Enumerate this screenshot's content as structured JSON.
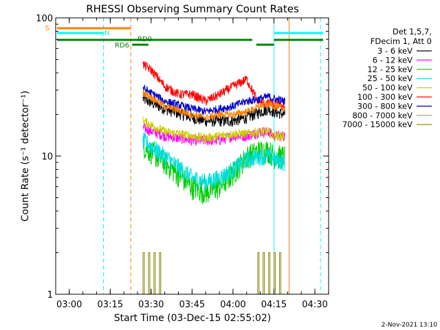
{
  "chart_data": {
    "type": "line",
    "title": "RHESSI Observing Summary Count Rates",
    "xlabel": "Start Time (03-Dec-15 02:55:02)",
    "ylabel": "Count Rate (s⁻¹ detector⁻¹)",
    "yscale": "log",
    "ylim": [
      1,
      100
    ],
    "xlim_minutes": [
      0,
      100
    ],
    "x_ticks": [
      "03:00",
      "03:15",
      "03:30",
      "03:45",
      "04:00",
      "04:15",
      "04:30"
    ],
    "x_tick_minutes": [
      4.97,
      19.97,
      34.97,
      49.97,
      64.97,
      79.97,
      94.97
    ],
    "y_ticks": [
      "1",
      "10",
      "100"
    ],
    "y_tick_values": [
      1,
      10,
      100
    ],
    "legend_header": [
      "Det 1,5,7,",
      "FDecim 1, Att 0"
    ],
    "legend_position": "right",
    "data_gap_minutes": [
      27.5,
      85.5
    ],
    "series": [
      {
        "name": "3 - 6 keV",
        "color": "#000000",
        "x": [
          32,
          40,
          50,
          55,
          60,
          65,
          70,
          75,
          78,
          80,
          84
        ],
        "y": [
          26,
          22,
          19,
          18,
          18,
          18,
          19,
          21,
          22,
          21,
          20
        ],
        "noise": 0.1
      },
      {
        "name": "6 - 12 keV",
        "color": "#ff00ff",
        "x": [
          32,
          40,
          50,
          55,
          60,
          65,
          70,
          75,
          78,
          80,
          84
        ],
        "y": [
          16,
          14,
          13,
          13,
          13,
          14,
          14,
          15,
          15,
          14,
          14
        ],
        "noise": 0.09
      },
      {
        "name": "12 - 25 keV",
        "color": "#00cc00",
        "x": [
          32,
          40,
          50,
          55,
          60,
          65,
          70,
          75,
          78,
          80,
          84
        ],
        "y": [
          12,
          9,
          6,
          5.5,
          6,
          7.5,
          10,
          11,
          11,
          10,
          10
        ],
        "noise": 0.2
      },
      {
        "name": "25 - 50 keV",
        "color": "#00dddd",
        "x": [
          32,
          40,
          50,
          55,
          60,
          65,
          70,
          75,
          78,
          80,
          84
        ],
        "y": [
          13,
          10,
          7,
          6.5,
          7,
          8,
          9.5,
          10,
          10,
          9.5,
          9
        ],
        "noise": 0.15
      },
      {
        "name": "50 - 100 keV",
        "color": "#cccc00",
        "x": [
          32,
          40,
          50,
          55,
          60,
          65,
          70,
          75,
          78,
          80,
          84
        ],
        "y": [
          18,
          15,
          14,
          13.5,
          14,
          14.5,
          14.5,
          15,
          15,
          14,
          14
        ],
        "noise": 0.08
      },
      {
        "name": "100 - 300 keV",
        "color": "#ff0000",
        "x": [
          32,
          35,
          40,
          45,
          50,
          55,
          60,
          65,
          70,
          72,
          74,
          76,
          80,
          84
        ],
        "y": [
          46,
          42,
          32,
          28,
          28,
          25,
          28,
          32,
          36,
          30,
          25,
          24,
          24,
          23
        ],
        "noise": 0.08
      },
      {
        "name": "300 - 800 keV",
        "color": "#0000cc",
        "x": [
          32,
          40,
          50,
          55,
          60,
          65,
          70,
          75,
          78,
          80,
          84
        ],
        "y": [
          31,
          25,
          22,
          21,
          22,
          23,
          25,
          26,
          27,
          26,
          25
        ],
        "noise": 0.07
      },
      {
        "name": "800 - 7000 keV",
        "color": "#ff8000",
        "x": [
          32,
          40,
          50,
          55,
          60,
          65,
          70,
          75,
          78,
          80,
          84
        ],
        "y": [
          29,
          23,
          20,
          19,
          20,
          20,
          21,
          23,
          24,
          23,
          22
        ],
        "noise": 0.06
      },
      {
        "name": "7000 - 15000 keV",
        "color": "#808000",
        "x": [
          32,
          33,
          34,
          35,
          36,
          37,
          38,
          39,
          74,
          75,
          76,
          77,
          78,
          79,
          80,
          81,
          82,
          83
        ],
        "y": [
          2,
          1,
          2,
          1,
          2,
          1,
          2,
          1,
          2,
          1,
          2,
          1,
          2,
          1,
          2,
          1,
          2,
          1
        ],
        "noise": 0
      }
    ],
    "flag_bars": [
      {
        "label": "S",
        "color": "#ff8000",
        "segments": [
          [
            0,
            27.5
          ]
        ]
      },
      {
        "label": "N",
        "color": "#00ffff",
        "segments": [
          [
            0,
            17.5
          ],
          [
            80,
            98
          ]
        ]
      },
      {
        "label": "RD0",
        "color": "#008000",
        "segments": [
          [
            0,
            72
          ],
          [
            80,
            98
          ]
        ]
      },
      {
        "label": "RD6",
        "color": "#008000",
        "segments": [
          [
            28,
            34
          ],
          [
            73.5,
            80
          ]
        ]
      }
    ],
    "vlines": [
      {
        "x": 17.5,
        "color": "#00ffff",
        "dashed": true
      },
      {
        "x": 27.5,
        "color": "#ff8000",
        "dashed": true
      },
      {
        "x": 80,
        "color": "#00ffff",
        "dashed": false
      },
      {
        "x": 85.5,
        "color": "#ff8000",
        "dashed": false
      },
      {
        "x": 97,
        "color": "#00ffff",
        "dashed": true
      }
    ],
    "grid": false
  },
  "footer": {
    "date_stamp": "2-Nov-2021 13:10"
  }
}
